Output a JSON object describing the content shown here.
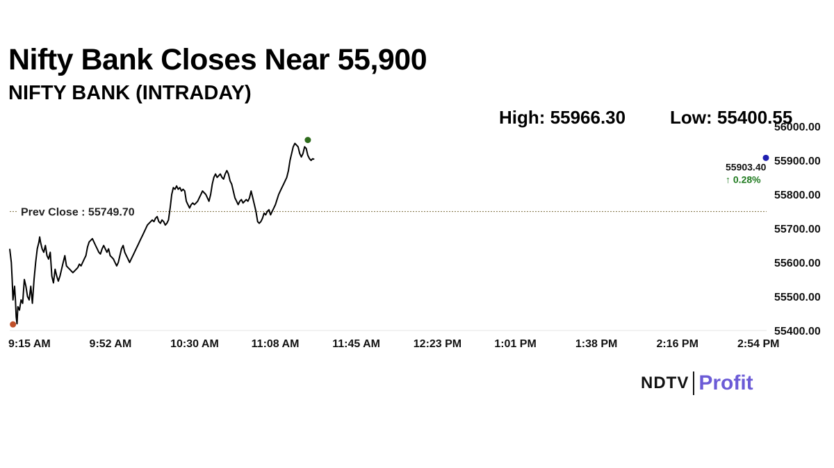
{
  "title": "Nifty Bank Closes Near 55,900",
  "subtitle": "NIFTY BANK (INTRADAY)",
  "stats": {
    "high": "High: 55966.30",
    "low": "Low: 55400.55"
  },
  "logo": {
    "left": "NDTV",
    "right": "Profit"
  },
  "chart_data": {
    "type": "line",
    "title": "NIFTY BANK (INTRADAY)",
    "xlabel": "",
    "ylabel": "",
    "ylim": [
      55400,
      56000
    ],
    "y_ticks": [
      "56000.00",
      "55900.00",
      "55800.00",
      "55700.00",
      "55600.00",
      "55500.00",
      "55400.00"
    ],
    "x_ticks": [
      "9:15 AM",
      "9:52 AM",
      "10:30 AM",
      "11:08 AM",
      "11:45 AM",
      "12:23 PM",
      "1:01 PM",
      "1:38 PM",
      "2:16 PM",
      "2:54 PM"
    ],
    "prev_close": {
      "label": "Prev Close : 55749.70",
      "value": 55749.7
    },
    "last": {
      "value": 55903.4,
      "label": "55903.40",
      "change": "↑ 0.28%"
    },
    "high_point": {
      "t": 3.68,
      "value": 55960
    },
    "low_point": {
      "t": 0.04,
      "value": 55418
    },
    "series": [
      {
        "points": [
          [
            0.0,
            55640
          ],
          [
            0.02,
            55600
          ],
          [
            0.03,
            55550
          ],
          [
            0.04,
            55490
          ],
          [
            0.05,
            55510
          ],
          [
            0.06,
            55530
          ],
          [
            0.07,
            55490
          ],
          [
            0.08,
            55440
          ],
          [
            0.09,
            55420
          ],
          [
            0.1,
            55470
          ],
          [
            0.12,
            55460
          ],
          [
            0.14,
            55490
          ],
          [
            0.16,
            55480
          ],
          [
            0.18,
            55550
          ],
          [
            0.2,
            55530
          ],
          [
            0.22,
            55500
          ],
          [
            0.24,
            55490
          ],
          [
            0.26,
            55530
          ],
          [
            0.28,
            55480
          ],
          [
            0.3,
            55550
          ],
          [
            0.32,
            55600
          ],
          [
            0.34,
            55640
          ],
          [
            0.36,
            55660
          ],
          [
            0.37,
            55675
          ],
          [
            0.38,
            55660
          ],
          [
            0.4,
            55640
          ],
          [
            0.42,
            55630
          ],
          [
            0.44,
            55650
          ],
          [
            0.46,
            55620
          ],
          [
            0.48,
            55610
          ],
          [
            0.5,
            55630
          ],
          [
            0.52,
            55560
          ],
          [
            0.54,
            55540
          ],
          [
            0.56,
            55580
          ],
          [
            0.58,
            55560
          ],
          [
            0.6,
            55545
          ],
          [
            0.62,
            55560
          ],
          [
            0.64,
            55580
          ],
          [
            0.66,
            55600
          ],
          [
            0.68,
            55620
          ],
          [
            0.7,
            55590
          ],
          [
            0.72,
            55585
          ],
          [
            0.74,
            55580
          ],
          [
            0.76,
            55575
          ],
          [
            0.78,
            55570
          ],
          [
            0.8,
            55575
          ],
          [
            0.82,
            55580
          ],
          [
            0.84,
            55585
          ],
          [
            0.86,
            55595
          ],
          [
            0.88,
            55590
          ],
          [
            0.9,
            55600
          ],
          [
            0.92,
            55610
          ],
          [
            0.94,
            55620
          ],
          [
            0.96,
            55645
          ],
          [
            0.98,
            55660
          ],
          [
            1.0,
            55665
          ],
          [
            1.02,
            55670
          ],
          [
            1.04,
            55660
          ],
          [
            1.06,
            55650
          ],
          [
            1.08,
            55640
          ],
          [
            1.1,
            55630
          ],
          [
            1.12,
            55625
          ],
          [
            1.14,
            55640
          ],
          [
            1.16,
            55650
          ],
          [
            1.18,
            55640
          ],
          [
            1.2,
            55630
          ],
          [
            1.22,
            55640
          ],
          [
            1.24,
            55620
          ],
          [
            1.26,
            55615
          ],
          [
            1.28,
            55610
          ],
          [
            1.3,
            55600
          ],
          [
            1.32,
            55590
          ],
          [
            1.34,
            55600
          ],
          [
            1.36,
            55620
          ],
          [
            1.38,
            55640
          ],
          [
            1.4,
            55650
          ],
          [
            1.42,
            55630
          ],
          [
            1.44,
            55620
          ],
          [
            1.46,
            55610
          ],
          [
            1.48,
            55600
          ],
          [
            1.5,
            55610
          ],
          [
            1.52,
            55620
          ],
          [
            1.54,
            55630
          ],
          [
            1.56,
            55640
          ],
          [
            1.58,
            55650
          ],
          [
            1.6,
            55660
          ],
          [
            1.62,
            55670
          ],
          [
            1.64,
            55680
          ],
          [
            1.66,
            55690
          ],
          [
            1.68,
            55700
          ],
          [
            1.7,
            55710
          ],
          [
            1.72,
            55715
          ],
          [
            1.74,
            55720
          ],
          [
            1.76,
            55725
          ],
          [
            1.78,
            55720
          ],
          [
            1.8,
            55730
          ],
          [
            1.82,
            55735
          ],
          [
            1.84,
            55720
          ],
          [
            1.86,
            55715
          ],
          [
            1.88,
            55725
          ],
          [
            1.9,
            55720
          ],
          [
            1.92,
            55710
          ],
          [
            1.94,
            55715
          ],
          [
            1.96,
            55725
          ],
          [
            1.98,
            55760
          ],
          [
            2.0,
            55800
          ],
          [
            2.02,
            55820
          ],
          [
            2.04,
            55815
          ],
          [
            2.06,
            55825
          ],
          [
            2.08,
            55815
          ],
          [
            2.1,
            55820
          ],
          [
            2.12,
            55810
          ],
          [
            2.14,
            55815
          ],
          [
            2.16,
            55810
          ],
          [
            2.18,
            55780
          ],
          [
            2.2,
            55770
          ],
          [
            2.22,
            55760
          ],
          [
            2.24,
            55770
          ],
          [
            2.26,
            55775
          ],
          [
            2.28,
            55770
          ],
          [
            2.3,
            55775
          ],
          [
            2.32,
            55780
          ],
          [
            2.34,
            55790
          ],
          [
            2.36,
            55800
          ],
          [
            2.38,
            55810
          ],
          [
            2.4,
            55805
          ],
          [
            2.42,
            55800
          ],
          [
            2.44,
            55790
          ],
          [
            2.46,
            55780
          ],
          [
            2.48,
            55800
          ],
          [
            2.5,
            55830
          ],
          [
            2.52,
            55850
          ],
          [
            2.54,
            55860
          ],
          [
            2.56,
            55850
          ],
          [
            2.58,
            55855
          ],
          [
            2.6,
            55860
          ],
          [
            2.62,
            55850
          ],
          [
            2.64,
            55845
          ],
          [
            2.66,
            55860
          ],
          [
            2.68,
            55870
          ],
          [
            2.7,
            55860
          ],
          [
            2.72,
            55840
          ],
          [
            2.74,
            55830
          ],
          [
            2.76,
            55810
          ],
          [
            2.78,
            55790
          ],
          [
            2.8,
            55780
          ],
          [
            2.82,
            55770
          ],
          [
            2.84,
            55780
          ],
          [
            2.86,
            55785
          ],
          [
            2.88,
            55775
          ],
          [
            2.9,
            55780
          ],
          [
            2.92,
            55785
          ],
          [
            2.94,
            55780
          ],
          [
            2.96,
            55790
          ],
          [
            2.98,
            55810
          ],
          [
            3.0,
            55790
          ],
          [
            3.02,
            55770
          ],
          [
            3.04,
            55750
          ],
          [
            3.06,
            55720
          ],
          [
            3.08,
            55715
          ],
          [
            3.1,
            55720
          ],
          [
            3.12,
            55730
          ],
          [
            3.14,
            55745
          ],
          [
            3.16,
            55740
          ],
          [
            3.18,
            55750
          ],
          [
            3.2,
            55755
          ],
          [
            3.22,
            55740
          ],
          [
            3.24,
            55750
          ],
          [
            3.26,
            55760
          ],
          [
            3.28,
            55770
          ],
          [
            3.3,
            55785
          ],
          [
            3.32,
            55800
          ],
          [
            3.34,
            55810
          ],
          [
            3.36,
            55820
          ],
          [
            3.38,
            55830
          ],
          [
            3.4,
            55840
          ],
          [
            3.42,
            55850
          ],
          [
            3.44,
            55870
          ],
          [
            3.46,
            55900
          ],
          [
            3.48,
            55920
          ],
          [
            3.5,
            55940
          ],
          [
            3.52,
            55950
          ],
          [
            3.54,
            55945
          ],
          [
            3.56,
            55940
          ],
          [
            3.58,
            55920
          ],
          [
            3.6,
            55910
          ],
          [
            3.62,
            55920
          ],
          [
            3.64,
            55940
          ],
          [
            3.66,
            55935
          ],
          [
            3.68,
            55915
          ],
          [
            3.7,
            55905
          ],
          [
            3.72,
            55900
          ],
          [
            3.74,
            55905
          ],
          [
            3.76,
            55903
          ]
        ]
      }
    ]
  },
  "colors": {
    "line": "#000000",
    "prev_close": "#7a6a3a",
    "grid": "#e6e6e6",
    "high_dot": "#2e6b1c",
    "low_dot": "#c0502a",
    "last_dot": "#1f1fb0",
    "change": "#1f7a1f"
  }
}
